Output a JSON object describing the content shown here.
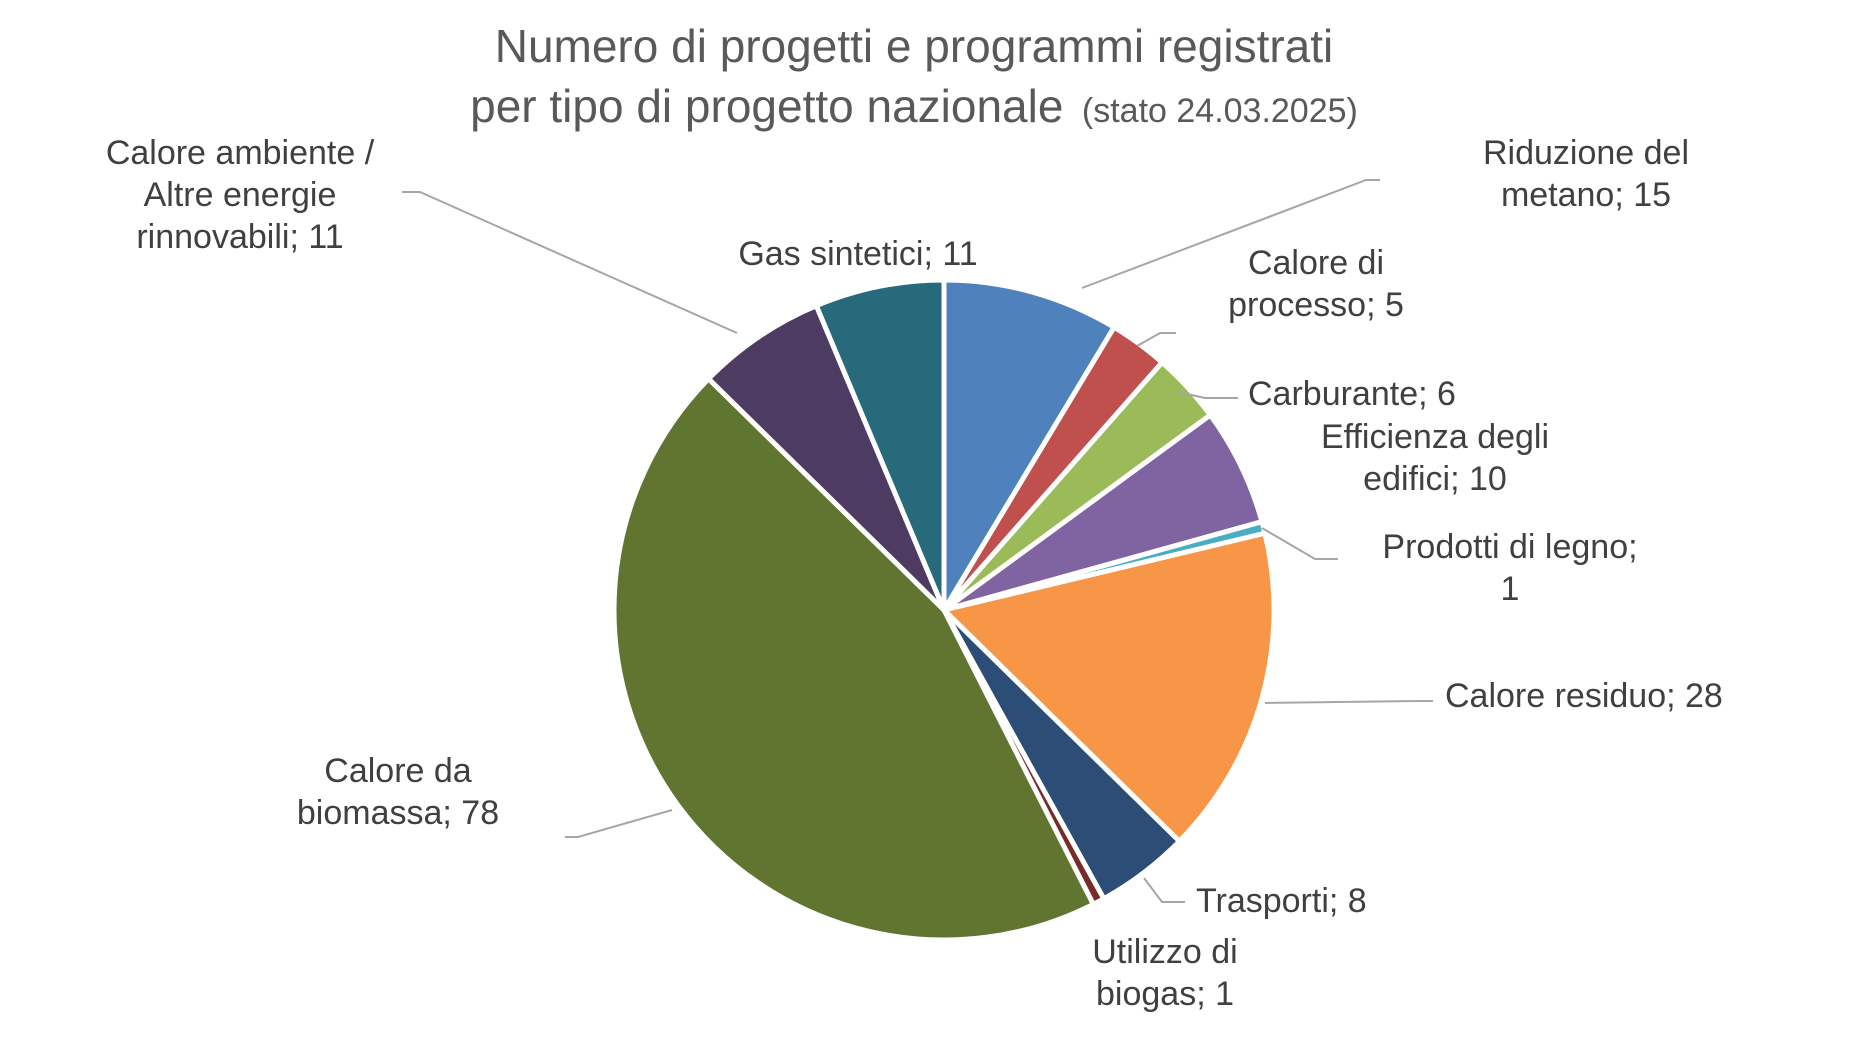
{
  "chart_data": {
    "type": "pie",
    "title_lines": [
      "Numero di progetti e programmi registrati",
      "per tipo di progetto nazionale"
    ],
    "title_suffix": "(stato 24.03.2025)",
    "slices": [
      {
        "name": "Riduzione del metano",
        "value": 15,
        "color": "#4f81bd",
        "label_lines": [
          "Riduzione del",
          "metano; 15"
        ]
      },
      {
        "name": "Calore di processo",
        "value": 5,
        "color": "#c0504d",
        "label_lines": [
          "Calore di",
          "processo; 5"
        ]
      },
      {
        "name": "Carburante",
        "value": 6,
        "color": "#9bbb59",
        "label_lines": [
          "Carburante; 6"
        ]
      },
      {
        "name": "Efficienza degli edifici",
        "value": 10,
        "color": "#8064a2",
        "label_lines": [
          "Efficienza degli",
          "edifici; 10"
        ]
      },
      {
        "name": "Prodotti di legno",
        "value": 1,
        "color": "#4bacc6",
        "label_lines": [
          "Prodotti di legno;",
          "1"
        ]
      },
      {
        "name": "Calore residuo",
        "value": 28,
        "color": "#f79646",
        "label_lines": [
          "Calore residuo; 28"
        ]
      },
      {
        "name": "Trasporti",
        "value": 8,
        "color": "#2c4d75",
        "label_lines": [
          "Trasporti; 8"
        ]
      },
      {
        "name": "Utilizzo di biogas",
        "value": 1,
        "color": "#772c2a",
        "label_lines": [
          "Utilizzo di",
          "biogas; 1"
        ]
      },
      {
        "name": "Calore da biomassa",
        "value": 78,
        "color": "#5f7530",
        "label_lines": [
          "Calore da",
          "biomassa; 78"
        ]
      },
      {
        "name": "Calore ambiente / Altre energie rinnovabili",
        "value": 11,
        "color": "#4d3b62",
        "label_lines": [
          "Calore ambiente /",
          "Altre energie",
          "rinnovabili; 11"
        ]
      },
      {
        "name": "Gas sintetici",
        "value": 11,
        "color": "#276a7c",
        "label_lines": [
          "Gas sintetici; 11"
        ]
      }
    ]
  }
}
